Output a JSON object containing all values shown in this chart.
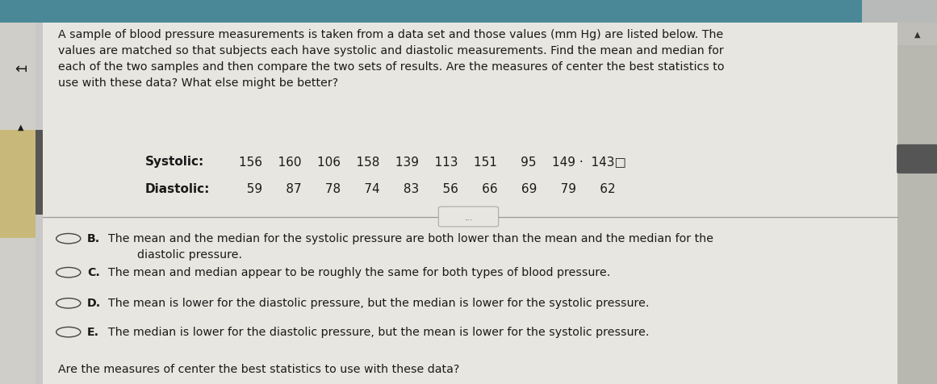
{
  "bg_color": "#c8c8c8",
  "panel_color": "#e8e6e0",
  "panel_color2": "#dedad2",
  "title_text": "A sample of blood pressure measurements is taken from a data set and those values (mm Hg) are listed below. The\nvalues are matched so that subjects each have systolic and diastolic measurements. Find the mean and median for\neach of the two samples and then compare the two sets of results. Are the measures of center the best statistics to\nuse with these data? What else might be better?",
  "systolic_label": "Systolic:",
  "systolic_values": "156    160    106    158    139    113    151      95    149 ·  143□",
  "diastolic_label": "Diastolic:",
  "diastolic_values": "  59      87      78      74      83      56      66      69      79      62",
  "separator_text": "...",
  "option_B_label": "B.",
  "option_B_text": "The mean and the median for the systolic pressure are both lower than the mean and the median for the\n        diastolic pressure.",
  "option_C_label": "C.",
  "option_C_text": "The mean and median appear to be roughly the same for both types of blood pressure.",
  "option_D_label": "D.",
  "option_D_text": "The mean is lower for the diastolic pressure, but the median is lower for the systolic pressure.",
  "option_E_label": "E.",
  "option_E_text": "The median is lower for the diastolic pressure, but the mean is lower for the systolic pressure.",
  "footer_text": "Are the measures of center the best statistics to use with these data?",
  "arrow_symbol": "↤",
  "radio_color": "#444444",
  "text_color": "#1a1a1a",
  "sidebar_color": "#c8b87a",
  "top_bar_color1": "#4a8898",
  "top_bar_color2": "#b8baba",
  "scroll_bar_color": "#555555",
  "font_size_body": 10.2,
  "font_size_data": 11.0,
  "font_size_options": 10.2
}
